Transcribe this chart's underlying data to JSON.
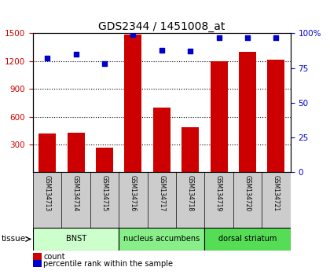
{
  "title": "GDS2344 / 1451008_at",
  "samples": [
    "GSM134713",
    "GSM134714",
    "GSM134715",
    "GSM134716",
    "GSM134717",
    "GSM134718",
    "GSM134719",
    "GSM134720",
    "GSM134721"
  ],
  "counts": [
    420,
    430,
    270,
    1490,
    700,
    490,
    1200,
    1300,
    1220
  ],
  "percentiles": [
    82,
    85,
    78,
    99,
    88,
    87,
    97,
    97,
    97
  ],
  "groups": [
    {
      "label": "BNST",
      "start": 0,
      "end": 3,
      "color": "#ccffcc"
    },
    {
      "label": "nucleus accumbens",
      "start": 3,
      "end": 6,
      "color": "#88ee88"
    },
    {
      "label": "dorsal striatum",
      "start": 6,
      "end": 9,
      "color": "#55dd55"
    }
  ],
  "ylim_left": [
    0,
    1500
  ],
  "ylim_right": [
    0,
    100
  ],
  "yticks_left": [
    300,
    600,
    900,
    1200,
    1500
  ],
  "yticks_right": [
    0,
    25,
    50,
    75,
    100
  ],
  "bar_color": "#cc0000",
  "dot_color": "#0000cc",
  "bg_color": "#ffffff",
  "sample_bg": "#cccccc",
  "tissue_label": "tissue",
  "legend_count": "count",
  "legend_pct": "percentile rank within the sample"
}
